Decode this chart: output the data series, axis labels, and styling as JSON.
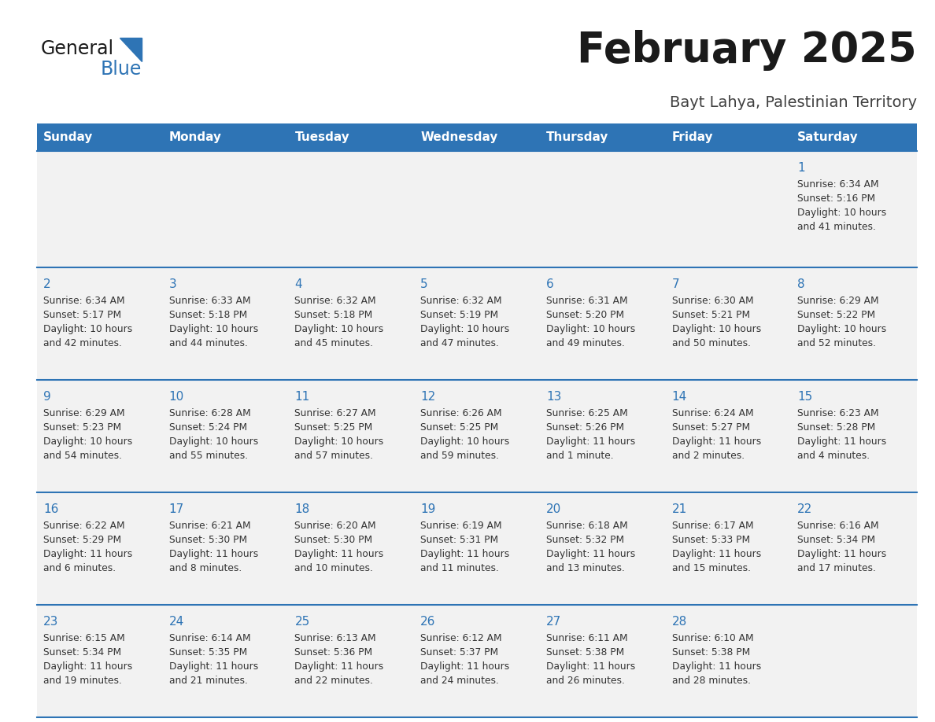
{
  "title": "February 2025",
  "subtitle": "Bayt Lahya, Palestinian Territory",
  "header_bg": "#2E74B5",
  "header_text_color": "#FFFFFF",
  "cell_bg": "#F2F2F2",
  "border_color": "#2E74B5",
  "day_headers": [
    "Sunday",
    "Monday",
    "Tuesday",
    "Wednesday",
    "Thursday",
    "Friday",
    "Saturday"
  ],
  "title_color": "#1A1A1A",
  "subtitle_color": "#404040",
  "day_number_color": "#2E74B5",
  "cell_text_color": "#333333",
  "logo_general_color": "#1A1A1A",
  "logo_blue_color": "#2E74B5",
  "logo_triangle_color": "#2E74B5",
  "calendar_data": [
    [
      {
        "day": null,
        "sunrise": null,
        "sunset": null,
        "daylight": null
      },
      {
        "day": null,
        "sunrise": null,
        "sunset": null,
        "daylight": null
      },
      {
        "day": null,
        "sunrise": null,
        "sunset": null,
        "daylight": null
      },
      {
        "day": null,
        "sunrise": null,
        "sunset": null,
        "daylight": null
      },
      {
        "day": null,
        "sunrise": null,
        "sunset": null,
        "daylight": null
      },
      {
        "day": null,
        "sunrise": null,
        "sunset": null,
        "daylight": null
      },
      {
        "day": 1,
        "sunrise": "6:34 AM",
        "sunset": "5:16 PM",
        "daylight": "10 hours\nand 41 minutes."
      }
    ],
    [
      {
        "day": 2,
        "sunrise": "6:34 AM",
        "sunset": "5:17 PM",
        "daylight": "10 hours\nand 42 minutes."
      },
      {
        "day": 3,
        "sunrise": "6:33 AM",
        "sunset": "5:18 PM",
        "daylight": "10 hours\nand 44 minutes."
      },
      {
        "day": 4,
        "sunrise": "6:32 AM",
        "sunset": "5:18 PM",
        "daylight": "10 hours\nand 45 minutes."
      },
      {
        "day": 5,
        "sunrise": "6:32 AM",
        "sunset": "5:19 PM",
        "daylight": "10 hours\nand 47 minutes."
      },
      {
        "day": 6,
        "sunrise": "6:31 AM",
        "sunset": "5:20 PM",
        "daylight": "10 hours\nand 49 minutes."
      },
      {
        "day": 7,
        "sunrise": "6:30 AM",
        "sunset": "5:21 PM",
        "daylight": "10 hours\nand 50 minutes."
      },
      {
        "day": 8,
        "sunrise": "6:29 AM",
        "sunset": "5:22 PM",
        "daylight": "10 hours\nand 52 minutes."
      }
    ],
    [
      {
        "day": 9,
        "sunrise": "6:29 AM",
        "sunset": "5:23 PM",
        "daylight": "10 hours\nand 54 minutes."
      },
      {
        "day": 10,
        "sunrise": "6:28 AM",
        "sunset": "5:24 PM",
        "daylight": "10 hours\nand 55 minutes."
      },
      {
        "day": 11,
        "sunrise": "6:27 AM",
        "sunset": "5:25 PM",
        "daylight": "10 hours\nand 57 minutes."
      },
      {
        "day": 12,
        "sunrise": "6:26 AM",
        "sunset": "5:25 PM",
        "daylight": "10 hours\nand 59 minutes."
      },
      {
        "day": 13,
        "sunrise": "6:25 AM",
        "sunset": "5:26 PM",
        "daylight": "11 hours\nand 1 minute."
      },
      {
        "day": 14,
        "sunrise": "6:24 AM",
        "sunset": "5:27 PM",
        "daylight": "11 hours\nand 2 minutes."
      },
      {
        "day": 15,
        "sunrise": "6:23 AM",
        "sunset": "5:28 PM",
        "daylight": "11 hours\nand 4 minutes."
      }
    ],
    [
      {
        "day": 16,
        "sunrise": "6:22 AM",
        "sunset": "5:29 PM",
        "daylight": "11 hours\nand 6 minutes."
      },
      {
        "day": 17,
        "sunrise": "6:21 AM",
        "sunset": "5:30 PM",
        "daylight": "11 hours\nand 8 minutes."
      },
      {
        "day": 18,
        "sunrise": "6:20 AM",
        "sunset": "5:30 PM",
        "daylight": "11 hours\nand 10 minutes."
      },
      {
        "day": 19,
        "sunrise": "6:19 AM",
        "sunset": "5:31 PM",
        "daylight": "11 hours\nand 11 minutes."
      },
      {
        "day": 20,
        "sunrise": "6:18 AM",
        "sunset": "5:32 PM",
        "daylight": "11 hours\nand 13 minutes."
      },
      {
        "day": 21,
        "sunrise": "6:17 AM",
        "sunset": "5:33 PM",
        "daylight": "11 hours\nand 15 minutes."
      },
      {
        "day": 22,
        "sunrise": "6:16 AM",
        "sunset": "5:34 PM",
        "daylight": "11 hours\nand 17 minutes."
      }
    ],
    [
      {
        "day": 23,
        "sunrise": "6:15 AM",
        "sunset": "5:34 PM",
        "daylight": "11 hours\nand 19 minutes."
      },
      {
        "day": 24,
        "sunrise": "6:14 AM",
        "sunset": "5:35 PM",
        "daylight": "11 hours\nand 21 minutes."
      },
      {
        "day": 25,
        "sunrise": "6:13 AM",
        "sunset": "5:36 PM",
        "daylight": "11 hours\nand 22 minutes."
      },
      {
        "day": 26,
        "sunrise": "6:12 AM",
        "sunset": "5:37 PM",
        "daylight": "11 hours\nand 24 minutes."
      },
      {
        "day": 27,
        "sunrise": "6:11 AM",
        "sunset": "5:38 PM",
        "daylight": "11 hours\nand 26 minutes."
      },
      {
        "day": 28,
        "sunrise": "6:10 AM",
        "sunset": "5:38 PM",
        "daylight": "11 hours\nand 28 minutes."
      },
      {
        "day": null,
        "sunrise": null,
        "sunset": null,
        "daylight": null
      }
    ]
  ]
}
